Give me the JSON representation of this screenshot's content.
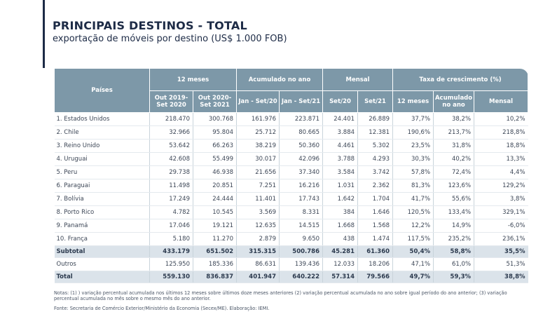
{
  "header": {
    "title": "PRINCIPAIS DESTINOS - TOTAL",
    "subtitle": "exportação de móveis por destino (US$ 1.000 FOB)"
  },
  "table": {
    "group_headers": {
      "countries": "Países",
      "months12": "12 meses",
      "accum": "Acumulado no ano",
      "monthly": "Mensal",
      "growth": "Taxa de crescimento (%)"
    },
    "sub_headers": {
      "out2019": "Out 2019-\nSet 2020",
      "out2020": "Out 2020-\nSet 2021",
      "jan20": "Jan - Set/20",
      "jan21": "Jan - Set/21",
      "set20": "Set/20",
      "set21": "Set/21",
      "g12": "12 meses",
      "gacc": "Acumulado\nno ano",
      "gmon": "Mensal"
    },
    "rows": [
      [
        "1. Estados Unidos",
        "218.470",
        "300.768",
        "161.976",
        "223.871",
        "24.401",
        "26.889",
        "37,7%",
        "38,2%",
        "10,2%"
      ],
      [
        "2. Chile",
        "32.966",
        "95.804",
        "25.712",
        "80.665",
        "3.884",
        "12.381",
        "190,6%",
        "213,7%",
        "218,8%"
      ],
      [
        "3. Reino Unido",
        "53.642",
        "66.263",
        "38.219",
        "50.360",
        "4.461",
        "5.302",
        "23,5%",
        "31,8%",
        "18,8%"
      ],
      [
        "4. Uruguai",
        "42.608",
        "55.499",
        "30.017",
        "42.096",
        "3.788",
        "4.293",
        "30,3%",
        "40,2%",
        "13,3%"
      ],
      [
        "5. Peru",
        "29.738",
        "46.938",
        "21.656",
        "37.340",
        "3.584",
        "3.742",
        "57,8%",
        "72,4%",
        "4,4%"
      ],
      [
        "6. Paraguai",
        "11.498",
        "20.851",
        "7.251",
        "16.216",
        "1.031",
        "2.362",
        "81,3%",
        "123,6%",
        "129,2%"
      ],
      [
        "7. Bolívia",
        "17.249",
        "24.444",
        "11.401",
        "17.743",
        "1.642",
        "1.704",
        "41,7%",
        "55,6%",
        "3,8%"
      ],
      [
        "8. Porto Rico",
        "4.782",
        "10.545",
        "3.569",
        "8.331",
        "384",
        "1.646",
        "120,5%",
        "133,4%",
        "329,1%"
      ],
      [
        "9. Panamá",
        "17.046",
        "19.121",
        "12.635",
        "14.515",
        "1.668",
        "1.568",
        "12,2%",
        "14,9%",
        "-6,0%"
      ],
      [
        "10. França",
        "5.180",
        "11.270",
        "2.879",
        "9.650",
        "438",
        "1.474",
        "117,5%",
        "235,2%",
        "236,1%"
      ]
    ],
    "subtotal": [
      "Subtotal",
      "433.179",
      "651.502",
      "315.315",
      "500.786",
      "45.281",
      "61.360",
      "50,4%",
      "58,8%",
      "35,5%"
    ],
    "outros": [
      "Outros",
      "125.950",
      "185.336",
      "86.631",
      "139.436",
      "12.033",
      "18.206",
      "47,1%",
      "61,0%",
      "51,3%"
    ],
    "total": [
      "Total",
      "559.130",
      "836.837",
      "401.947",
      "640.222",
      "57.314",
      "79.566",
      "49,7%",
      "59,3%",
      "38,8%"
    ]
  },
  "notes": "Notas: (1) ) variação percentual acumulada nos últimos 12 meses sobre últimos doze meses anteriores (2) variação percentual acumulada no ano sobre igual período do ano anterior; (3) variação percentual acumulada no mês sobre o mesmo mês do ano anterior.",
  "source": "Fonte: Secretaria de Comércio Exterior/Ministério da Economia (Secex/ME). Elaboração: IEMI.",
  "colors": {
    "header_bg": "#7d98a8",
    "title": "#1d2b46",
    "total_bg": "#dbe3ea"
  }
}
